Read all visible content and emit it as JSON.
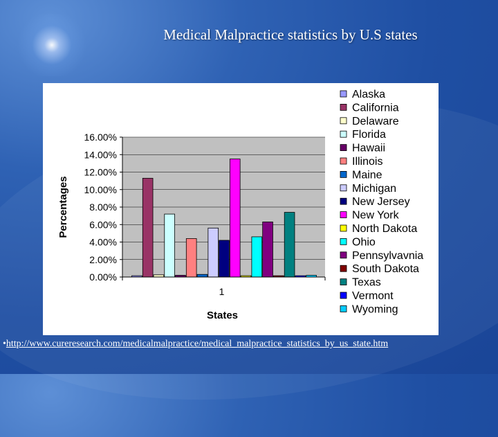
{
  "slide": {
    "title": "Medical Malpractice statistics  by U.S states",
    "source_bullet": "•",
    "source_url": "http://www.cureresearch.com/medicalmalpractice/medical_malpractice_statistics_by_us_state.htm"
  },
  "chart_data": {
    "type": "bar",
    "title": "",
    "xlabel": "States",
    "ylabel": "Percentages",
    "categories": [
      "1"
    ],
    "ylim": [
      0,
      16
    ],
    "yticks": [
      "0.00%",
      "2.00%",
      "4.00%",
      "6.00%",
      "8.00%",
      "10.00%",
      "12.00%",
      "14.00%",
      "16.00%"
    ],
    "grid": true,
    "legend_position": "right",
    "series": [
      {
        "name": "Alaska",
        "values": [
          0.15
        ],
        "color": "#9999ff"
      },
      {
        "name": "California",
        "values": [
          11.3
        ],
        "color": "#993366"
      },
      {
        "name": "Delaware",
        "values": [
          0.25
        ],
        "color": "#ffffcc"
      },
      {
        "name": "Florida",
        "values": [
          7.2
        ],
        "color": "#ccffff"
      },
      {
        "name": "Hawaii",
        "values": [
          0.2
        ],
        "color": "#660066"
      },
      {
        "name": "Illinois",
        "values": [
          4.4
        ],
        "color": "#ff8080"
      },
      {
        "name": "Maine",
        "values": [
          0.3
        ],
        "color": "#0066cc"
      },
      {
        "name": "Michigan",
        "values": [
          5.6
        ],
        "color": "#ccccff"
      },
      {
        "name": "New Jersey",
        "values": [
          4.2
        ],
        "color": "#000080"
      },
      {
        "name": "New York",
        "values": [
          13.5
        ],
        "color": "#ff00ff"
      },
      {
        "name": "North Dakota",
        "values": [
          0.15
        ],
        "color": "#ffff00"
      },
      {
        "name": "Ohio",
        "values": [
          4.6
        ],
        "color": "#00ffff"
      },
      {
        "name": "Pennsylvavnia",
        "values": [
          6.3
        ],
        "color": "#800080"
      },
      {
        "name": "South Dakota",
        "values": [
          0.15
        ],
        "color": "#800000"
      },
      {
        "name": "Texas",
        "values": [
          7.4
        ],
        "color": "#008080"
      },
      {
        "name": "Vermont",
        "values": [
          0.15
        ],
        "color": "#0000ff"
      },
      {
        "name": "Wyoming",
        "values": [
          0.2
        ],
        "color": "#00ccff"
      }
    ]
  }
}
